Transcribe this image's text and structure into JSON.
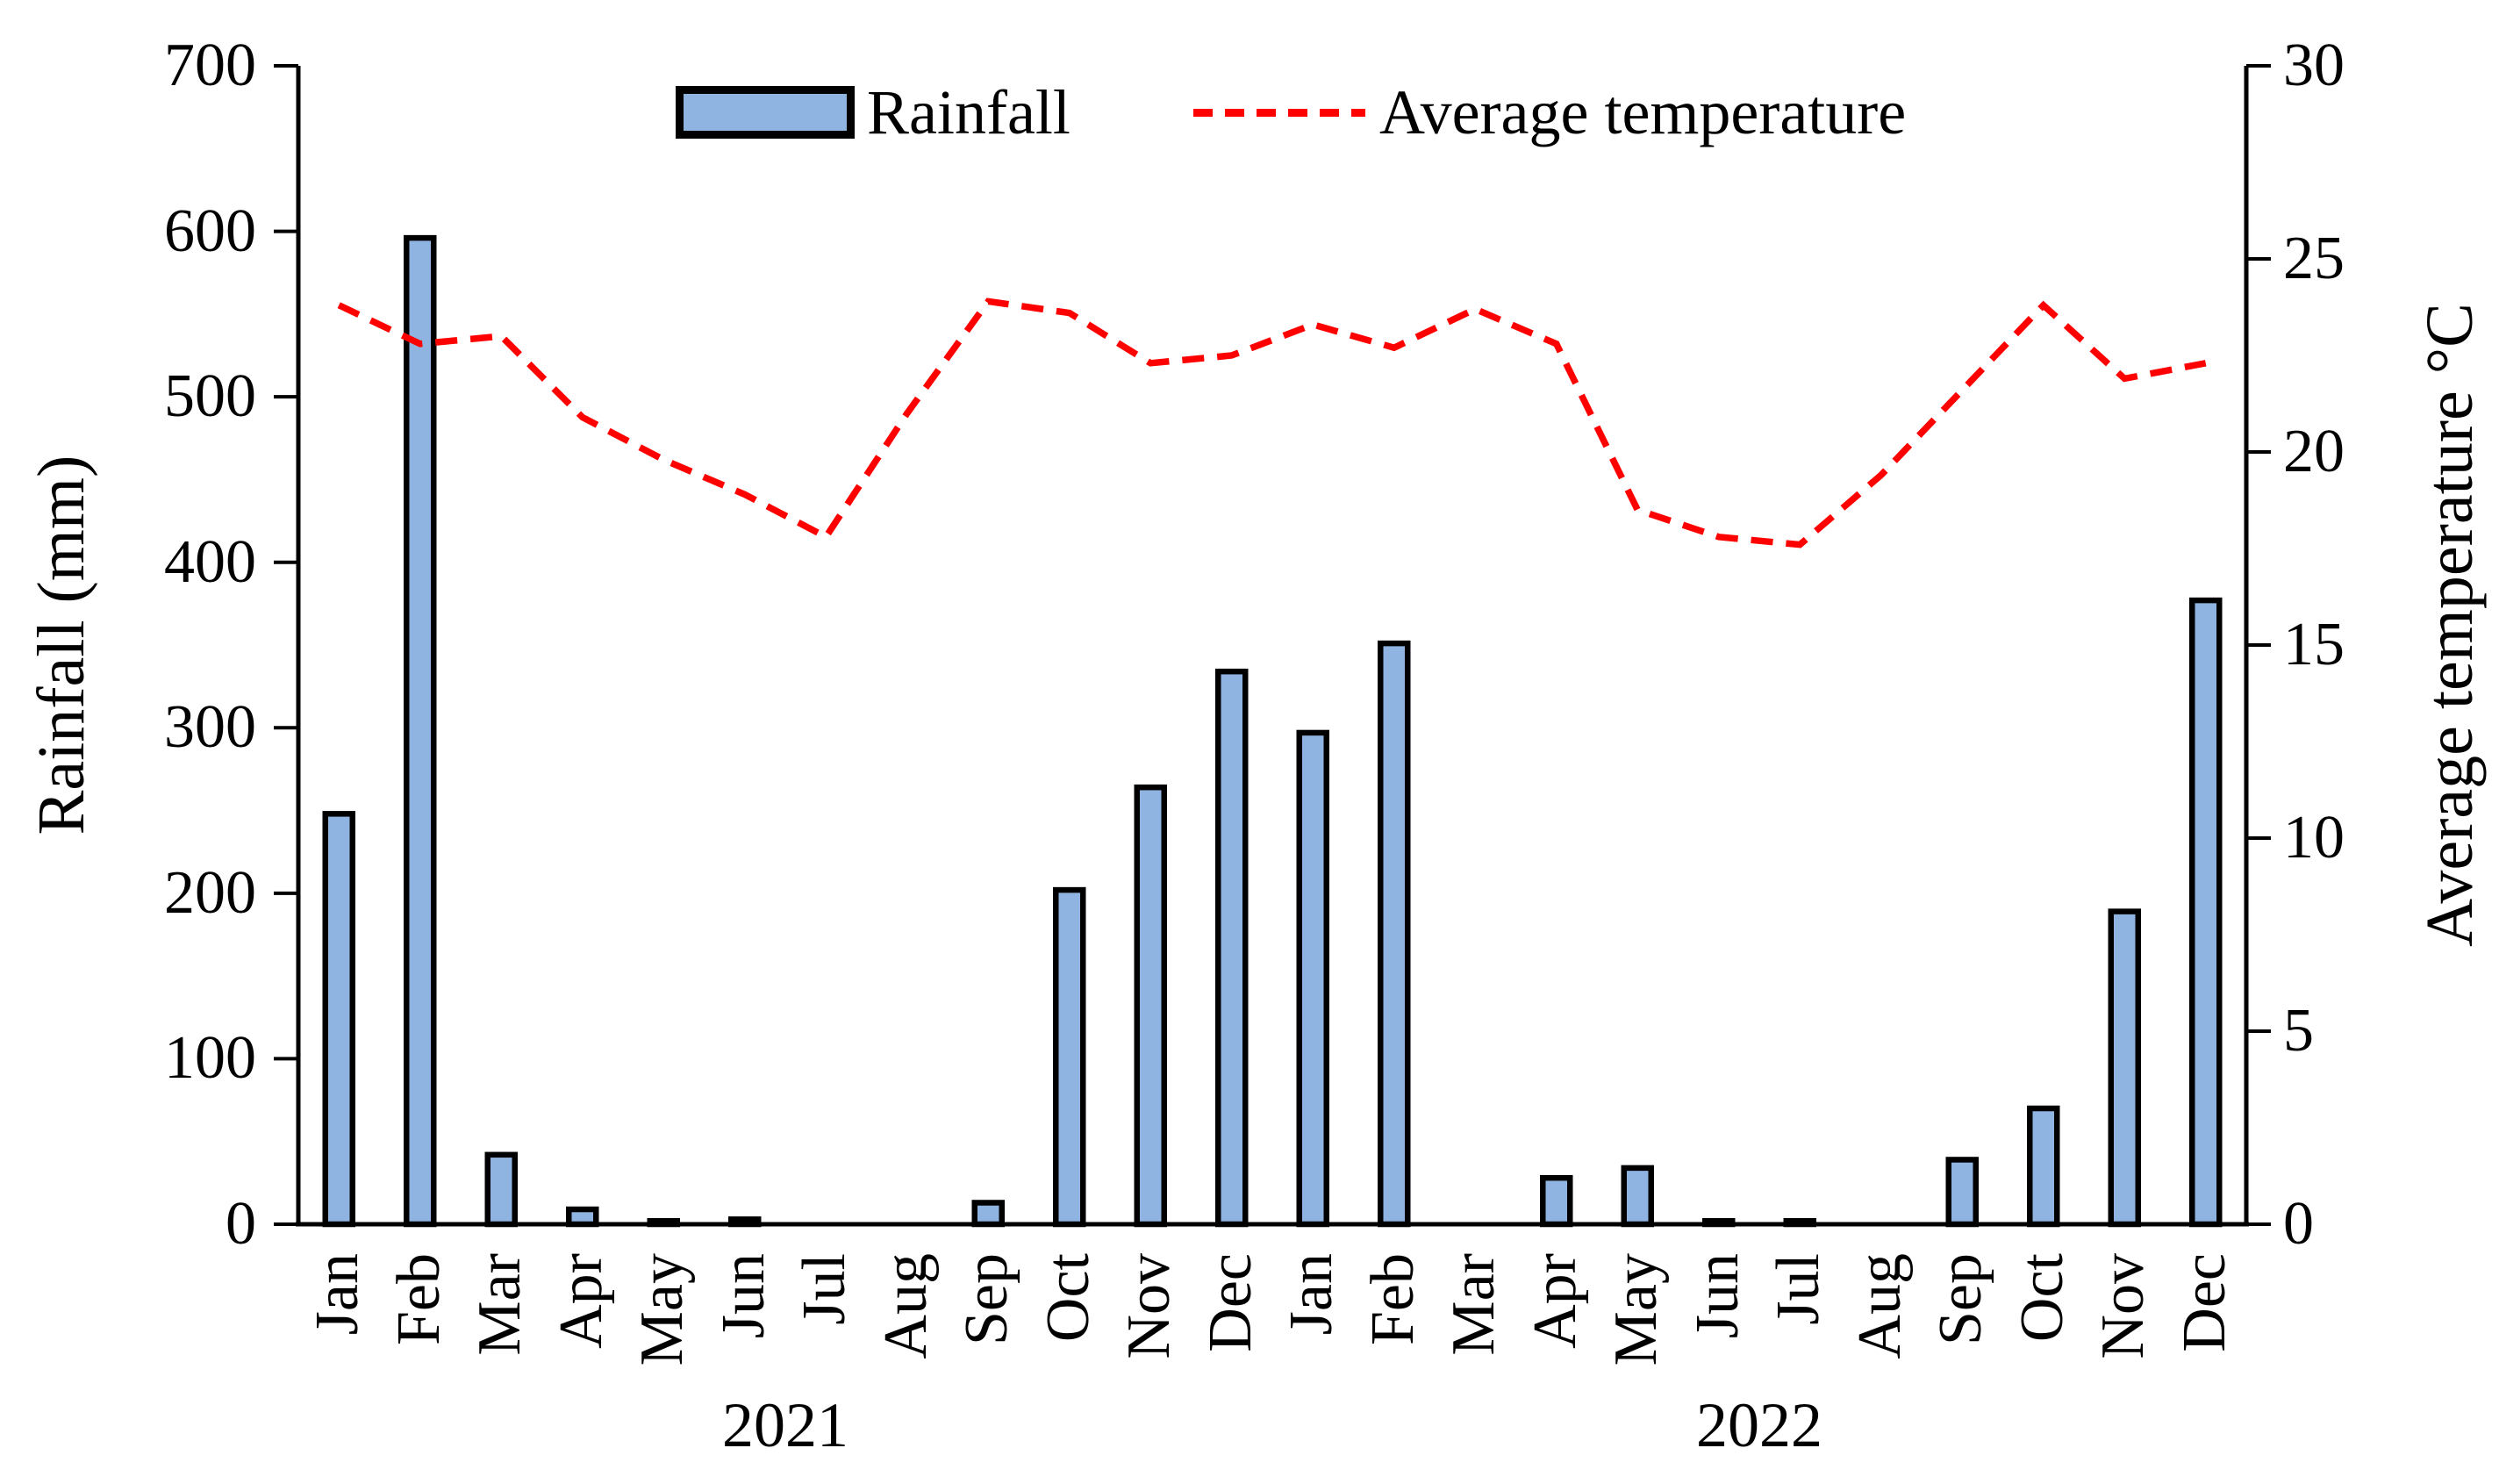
{
  "chart_data": {
    "type": "combo-bar-line",
    "title": "",
    "categories": [
      "Jan",
      "Feb",
      "Mar",
      "Apr",
      "May",
      "Jun",
      "Jul",
      "Aug",
      "Sep",
      "Oct",
      "Nov",
      "Dec",
      "Jan",
      "Feb",
      "Mar",
      "Apr",
      "May",
      "Jun",
      "Jul",
      "Aug",
      "Sep",
      "Oct",
      "Nov",
      "Dec"
    ],
    "x_groups": [
      {
        "label": "2021",
        "start": 0,
        "end": 11
      },
      {
        "label": "2022",
        "start": 12,
        "end": 23
      }
    ],
    "series": [
      {
        "name": "Rainfall",
        "type": "bar",
        "axis": "left",
        "color": "#8FB4E2",
        "border_color": "#000000",
        "values": [
          248,
          596,
          42,
          9,
          2,
          3,
          0,
          0,
          13,
          202,
          264,
          334,
          297,
          351,
          0,
          28,
          34,
          2,
          2,
          0,
          39,
          70,
          189,
          377
        ]
      },
      {
        "name": "Average temperature",
        "type": "line",
        "axis": "right",
        "style": "dashed",
        "color": "#FF0000",
        "values": [
          23.8,
          22.8,
          23.0,
          20.9,
          19.8,
          18.9,
          17.8,
          21.0,
          23.9,
          23.6,
          22.3,
          22.5,
          23.3,
          22.7,
          23.7,
          22.8,
          18.5,
          17.8,
          17.6,
          19.4,
          21.6,
          23.8,
          21.9,
          22.3
        ]
      }
    ],
    "y_left": {
      "label": "Rainfall (mm)",
      "min": 0,
      "max": 700,
      "tick_step": 100,
      "ticks": [
        700,
        600,
        500,
        400,
        300,
        200,
        100,
        0
      ]
    },
    "y_right": {
      "label": "Average temperature °C",
      "min": 0,
      "max": 30,
      "tick_step": 5,
      "ticks": [
        30,
        25,
        20,
        15,
        10,
        5,
        0
      ]
    },
    "grid": false,
    "legend_position": "top-center",
    "colors": {
      "axis": "#000000",
      "text": "#000000",
      "background": "#FFFFFF"
    }
  }
}
